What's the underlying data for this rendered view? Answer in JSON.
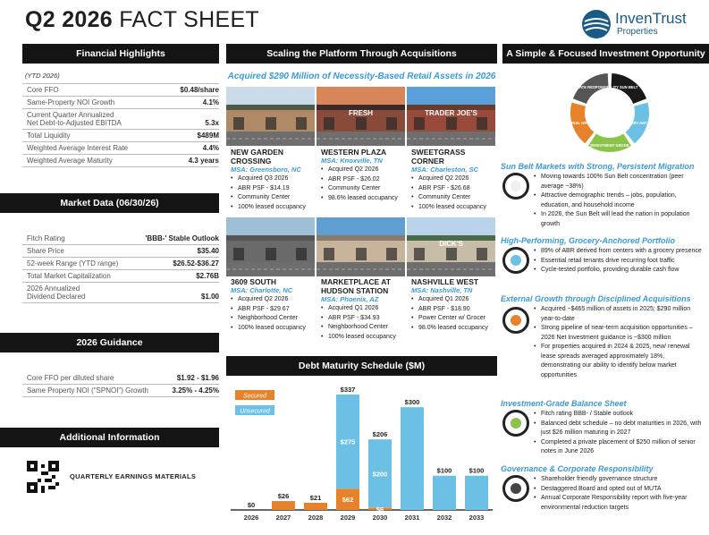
{
  "header": {
    "title_bold": "Q2 2026",
    "title_light": "FACT SHEET",
    "logo_name": "InvenTrust",
    "logo_sub": "Properties"
  },
  "financial": {
    "heading": "Financial Highlights",
    "note": "(YTD 2026)",
    "rows": [
      {
        "label": "Core FFO",
        "value": "$0.48/share"
      },
      {
        "label": "Same-Property NOI Growth",
        "value": "4.1%"
      },
      {
        "label": "Current Quarter Annualized\nNet Debt-to-Adjusted EBITDA",
        "value": "5.3x"
      },
      {
        "label": "Total Liquidity",
        "value": "$489M"
      },
      {
        "label": "Weighted Average Interest Rate",
        "value": "4.4%"
      },
      {
        "label": "Weighted Average Maturity",
        "value": "4.3 years"
      }
    ]
  },
  "market": {
    "heading": "Market Data (06/30/26)",
    "rows": [
      {
        "label": "Fitch Rating",
        "value": "'BBB-' Stable Outlook"
      },
      {
        "label": "Share Price",
        "value": "$35.40"
      },
      {
        "label": "52-week Range (YTD range)",
        "value": "$26.52-$36.27"
      },
      {
        "label": "Total Market Capitalization",
        "value": "$2.76B"
      },
      {
        "label": "2026 Annualized\nDividend Declared",
        "value": "$1.00"
      }
    ]
  },
  "guidance": {
    "heading": "2026 Guidance",
    "rows": [
      {
        "label": "Core FFO per diluted share",
        "value": "$1.92 - $1.96"
      },
      {
        "label": "Same Property NOI (\"SPNOI\") Growth",
        "value": "3.25% - 4.25%"
      }
    ]
  },
  "additional": {
    "heading": "Additional Information",
    "link": "QUARTERLY EARNINGS MATERIALS"
  },
  "acquisitions": {
    "heading": "Scaling the Platform Through Acquisitions",
    "subheading": "Acquired $290 Million of Necessity-Based Retail Assets in 2026",
    "properties": [
      {
        "name": "NEW GARDEN CROSSING",
        "msa": "MSA: Greensboro, NC",
        "sign": "",
        "bullets": [
          "Acquired Q3 2026",
          "ABR PSF - $14.19",
          "Community Center",
          "100% leased occupancy"
        ]
      },
      {
        "name": "WESTERN PLAZA",
        "msa": "MSA: Knoxville, TN",
        "sign": "FRESH",
        "bullets": [
          "Acquired Q2 2026",
          "ABR PSF - $26.02",
          "Community Center",
          "98.6% leased occupancy"
        ]
      },
      {
        "name": "SWEETGRASS CORNER",
        "msa": "MSA: Charleston, SC",
        "sign": "TRADER JOE'S",
        "bullets": [
          "Acquired Q2 2026",
          "ABR PSF - $26.68",
          "Community Center",
          "100% leased occupancy"
        ]
      },
      {
        "name": "3609 SOUTH",
        "msa": "MSA: Charlotte, NC",
        "sign": "",
        "bullets": [
          "Acquired Q2 2026",
          "ABR PSF - $29.67",
          "Neighborhood Center",
          "100% leased occupancy"
        ]
      },
      {
        "name": "MARKETPLACE AT HUDSON STATION",
        "msa": "MSA: Phoenix, AZ",
        "sign": "",
        "bullets": [
          "Acquired Q1 2026",
          "ABR PSF - $34.93",
          "Neighborhood Center",
          "100% leased occupancy"
        ]
      },
      {
        "name": "NASHVILLE WEST",
        "msa": "MSA: Nashville, TN",
        "sign": "DICK'S",
        "bullets": [
          "Acquired Q1 2026",
          "ABR PSF - $18.90",
          "Power Center w/ Grocer",
          "98.0% leased occupancy"
        ]
      }
    ]
  },
  "debt": {
    "heading": "Debt Maturity Schedule ($M)"
  },
  "chart_data": {
    "type": "bar",
    "title": "Debt Maturity Schedule ($M)",
    "categories": [
      "2026",
      "2027",
      "2028",
      "2029",
      "2030",
      "2031",
      "2032",
      "2033"
    ],
    "series": [
      {
        "name": "Secured",
        "values": [
          0,
          26,
          21,
          62,
          6,
          0,
          0,
          0
        ]
      },
      {
        "name": "Unsecured",
        "values": [
          0,
          0,
          0,
          275,
          200,
          300,
          100,
          100
        ]
      }
    ],
    "totals": [
      "$0",
      "$26",
      "$21",
      "$337",
      "$206",
      "$300",
      "$100",
      "$100"
    ],
    "segment_labels": {
      "secured": [
        "",
        "",
        "",
        "$62",
        "$6",
        "",
        "",
        ""
      ],
      "unsecured": [
        "",
        "",
        "",
        "$275",
        "$200",
        "",
        "",
        ""
      ]
    },
    "stacked": true,
    "ylim": [
      0,
      337
    ],
    "legend": "top-left",
    "colors": {
      "Secured": "#e8822a",
      "Unsecured": "#6cc0e5"
    }
  },
  "strategy": {
    "heading": "A Simple & Focused Investment Opportunity",
    "wheel": [
      "SUN BELT",
      "GROCERY-ANCHORED",
      "INVESTMENT GRADE",
      "EXTERNAL GROWTH",
      "CORPORATE RESPONSIBILITY"
    ],
    "sections": [
      {
        "title": "Sun Belt Markets with Strong, Persistent Migration",
        "color": "#f0f0f0",
        "bullets": [
          "Moving towards 100% Sun Belt concentration (peer average ~38%)",
          "Attractive demographic trends – jobs, population, education, and household income",
          "In 2026, the Sun Belt will lead the nation in population growth"
        ]
      },
      {
        "title": "High-Performing, Grocery-Anchored Portfolio",
        "color": "#6cc0e5",
        "bullets": [
          "89% of ABR derived from centers with a grocery presence",
          "Essential retail tenants drive recurring foot traffic",
          "Cycle-tested portfolio, providing durable cash flow"
        ]
      },
      {
        "title": "External Growth through Disciplined Acquisitions",
        "color": "#e8822a",
        "bullets": [
          "Acquired ~$465 million of assets in 2025; $290 million year-to-date",
          "Strong pipeline of near-term acquisition opportunities – 2026 Net Investment guidance is ~$300 million",
          "For properties acquired in 2024 & 2025, new/ renewal lease spreads averaged approximately 18%, demonstrating our ability to identify below market opportunities"
        ]
      },
      {
        "title": "Investment-Grade Balance Sheet",
        "color": "#8bc34a",
        "bullets": [
          "Fitch rating BBB- / Stable outlook",
          "Balanced debt schedule – no debt maturities in 2026, with just $26 million maturing in 2027",
          "Completed a private placement of $250 million of senior notes in June 2026"
        ]
      },
      {
        "title": "Governance & Corporate Responsibility",
        "color": "#444444",
        "bullets": [
          "Shareholder friendly governance structure",
          "Destaggered Board and opted out of MUTA",
          "Annual Corporate Responsibility report with five-year environmental reduction targets"
        ]
      }
    ]
  }
}
